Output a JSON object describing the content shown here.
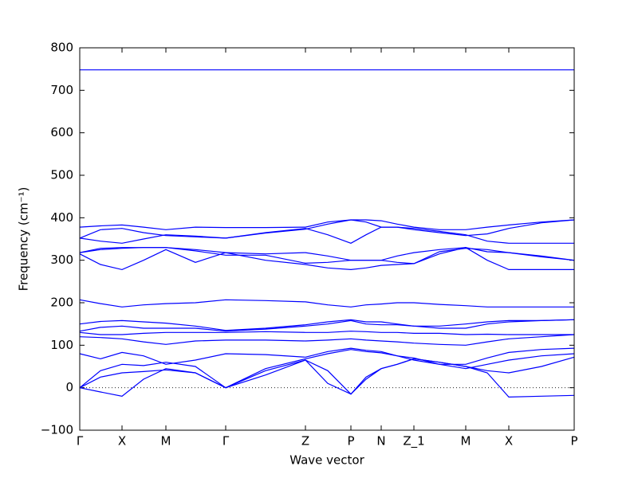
{
  "chart_data": {
    "type": "line",
    "xlabel": "Wave vector",
    "ylabel": "Frequency (cm⁻¹)",
    "x": [
      0,
      26,
      53,
      80,
      108,
      145,
      183,
      233,
      283,
      311,
      340,
      359,
      378,
      398,
      419,
      451,
      484,
      511,
      538,
      579,
      620
    ],
    "xlim": [
      0,
      620
    ],
    "xticks": [
      {
        "value": 0,
        "label": "Γ"
      },
      {
        "value": 53,
        "label": "X"
      },
      {
        "value": 108,
        "label": "M"
      },
      {
        "value": 183,
        "label": "Γ"
      },
      {
        "value": 283,
        "label": "Z"
      },
      {
        "value": 340,
        "label": "P"
      },
      {
        "value": 378,
        "label": "N"
      },
      {
        "value": 419,
        "label": "Z_1"
      },
      {
        "value": 484,
        "label": "M"
      },
      {
        "value": 538,
        "label": "X"
      },
      {
        "value": 620,
        "label": "P"
      }
    ],
    "ylim": [
      -100,
      800
    ],
    "yticks": [
      {
        "value": -100,
        "label": "−100"
      },
      0,
      100,
      200,
      300,
      400,
      500,
      600,
      700,
      800
    ],
    "reference_line": 0,
    "series": [
      {
        "color": "#0000ff",
        "values": [
          748,
          748,
          748,
          748,
          748,
          748,
          748,
          748,
          748,
          748,
          748,
          748,
          748,
          748,
          748,
          748,
          748,
          748,
          748,
          748,
          748
        ]
      },
      {
        "color": "#0000ff",
        "values": [
          378,
          381,
          383,
          378,
          372,
          378,
          377,
          377,
          378,
          390,
          395,
          395,
          393,
          385,
          378,
          372,
          372,
          378,
          383,
          390,
          395
        ]
      },
      {
        "color": "#0000ff",
        "values": [
          352,
          345,
          340,
          350,
          360,
          357,
          352,
          365,
          375,
          360,
          340,
          360,
          378,
          378,
          375,
          368,
          360,
          345,
          340,
          340,
          340
        ]
      },
      {
        "color": "#0000ff",
        "values": [
          352,
          372,
          375,
          365,
          358,
          355,
          352,
          364,
          373,
          385,
          395,
          390,
          378,
          378,
          372,
          365,
          358,
          362,
          375,
          388,
          395
        ]
      },
      {
        "color": "#0000ff",
        "values": [
          318,
          328,
          330,
          330,
          330,
          325,
          318,
          315,
          318,
          310,
          300,
          300,
          300,
          310,
          318,
          325,
          330,
          320,
          318,
          308,
          300
        ]
      },
      {
        "color": "#0000ff",
        "values": [
          315,
          290,
          278,
          300,
          325,
          295,
          318,
          300,
          290,
          282,
          278,
          282,
          288,
          290,
          292,
          315,
          330,
          300,
          278,
          278,
          278
        ]
      },
      {
        "color": "#0000ff",
        "values": [
          318,
          325,
          328,
          330,
          330,
          322,
          312,
          312,
          293,
          295,
          300,
          300,
          300,
          295,
          292,
          320,
          328,
          325,
          318,
          310,
          300
        ]
      },
      {
        "color": "#0000ff",
        "values": [
          207,
          198,
          190,
          195,
          198,
          200,
          207,
          205,
          202,
          195,
          190,
          195,
          197,
          200,
          200,
          196,
          193,
          190,
          190,
          190,
          190
        ]
      },
      {
        "color": "#0000ff",
        "values": [
          150,
          156,
          158,
          155,
          152,
          145,
          135,
          140,
          148,
          155,
          160,
          155,
          155,
          150,
          145,
          140,
          140,
          150,
          155,
          158,
          160
        ]
      },
      {
        "color": "#0000ff",
        "values": [
          133,
          142,
          145,
          140,
          140,
          140,
          133,
          138,
          145,
          150,
          158,
          150,
          148,
          148,
          145,
          145,
          150,
          155,
          158,
          158,
          160
        ]
      },
      {
        "color": "#0000ff",
        "values": [
          130,
          125,
          125,
          128,
          130,
          130,
          130,
          132,
          130,
          130,
          133,
          132,
          130,
          130,
          128,
          128,
          125,
          126,
          125,
          125,
          125
        ]
      },
      {
        "color": "#0000ff",
        "values": [
          120,
          118,
          115,
          108,
          102,
          110,
          112,
          112,
          110,
          112,
          115,
          112,
          110,
          108,
          105,
          102,
          100,
          108,
          115,
          120,
          125
        ]
      },
      {
        "color": "#0000ff",
        "values": [
          80,
          68,
          83,
          75,
          55,
          65,
          80,
          78,
          72,
          85,
          93,
          88,
          85,
          75,
          70,
          55,
          55,
          70,
          83,
          90,
          93
        ]
      },
      {
        "color": "#0000ff",
        "values": [
          0,
          40,
          55,
          52,
          60,
          50,
          0,
          45,
          68,
          80,
          90,
          85,
          82,
          75,
          65,
          55,
          45,
          55,
          65,
          75,
          80
        ]
      },
      {
        "color": "#0000ff",
        "values": [
          0,
          25,
          35,
          38,
          42,
          35,
          0,
          40,
          65,
          40,
          -15,
          25,
          45,
          55,
          68,
          60,
          50,
          40,
          35,
          50,
          72
        ]
      },
      {
        "color": "#0000ff",
        "values": [
          0,
          -10,
          -20,
          20,
          45,
          35,
          0,
          30,
          65,
          10,
          -15,
          20,
          45,
          55,
          68,
          60,
          50,
          35,
          -22,
          -20,
          -18
        ]
      }
    ]
  }
}
